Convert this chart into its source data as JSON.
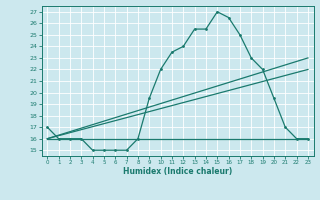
{
  "title": "",
  "xlabel": "Humidex (Indice chaleur)",
  "background_color": "#cce8ee",
  "line_color": "#1a7a6e",
  "xlim": [
    -0.5,
    23.5
  ],
  "ylim": [
    14.5,
    27.5
  ],
  "xticks": [
    0,
    1,
    2,
    3,
    4,
    5,
    6,
    7,
    8,
    9,
    10,
    11,
    12,
    13,
    14,
    15,
    16,
    17,
    18,
    19,
    20,
    21,
    22,
    23
  ],
  "yticks": [
    15,
    16,
    17,
    18,
    19,
    20,
    21,
    22,
    23,
    24,
    25,
    26,
    27
  ],
  "line1_x": [
    0,
    1,
    2,
    3,
    4,
    5,
    6,
    7,
    8,
    9,
    10,
    11,
    12,
    13,
    14,
    15,
    16,
    17,
    18,
    19,
    20,
    21,
    22,
    23
  ],
  "line1_y": [
    17,
    16,
    16,
    16,
    15,
    15,
    15,
    15,
    16,
    19.5,
    22,
    23.5,
    24,
    25.5,
    25.5,
    27,
    26.5,
    25,
    23,
    22,
    19.5,
    17,
    16,
    16
  ],
  "line2_x": [
    0,
    23
  ],
  "line2_y": [
    16,
    23
  ],
  "line3_x": [
    0,
    23
  ],
  "line3_y": [
    16,
    22
  ],
  "line4_x": [
    0,
    23
  ],
  "line4_y": [
    16,
    16
  ]
}
